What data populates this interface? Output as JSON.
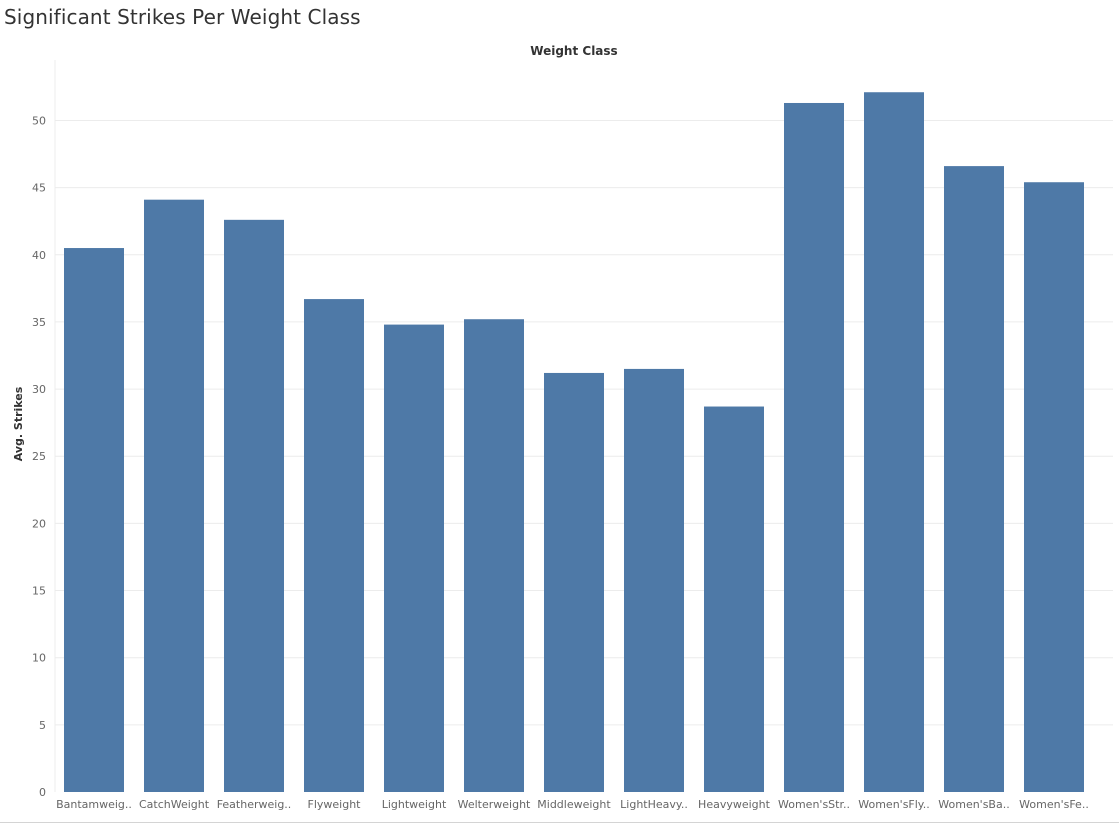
{
  "header": {
    "title": "Significant Strikes Per Weight Class"
  },
  "chart_data": {
    "type": "bar",
    "title": "Significant Strikes Per Weight Class",
    "xlabel": "Weight Class",
    "ylabel": "Avg. Strikes",
    "x_axis_position": "top",
    "categories": [
      "Bantamweig..",
      "CatchWeight",
      "Featherweig..",
      "Flyweight",
      "Lightweight",
      "Welterweight",
      "Middleweight",
      "LightHeavy..",
      "Heavyweight",
      "Women'sStr..",
      "Women'sFly..",
      "Women'sBa..",
      "Women'sFe.."
    ],
    "values": [
      40.5,
      44.1,
      42.6,
      36.7,
      34.8,
      35.2,
      31.2,
      31.5,
      28.7,
      51.3,
      52.1,
      46.6,
      45.4
    ],
    "yticks": [
      "0",
      "5",
      "10",
      "15",
      "20",
      "25",
      "30",
      "35",
      "40",
      "45",
      "50"
    ],
    "ylim": [
      0,
      54.5
    ],
    "grid": true,
    "colors": {
      "bar": "#4e79a7",
      "grid": "#ececec",
      "axis_text": "#666666",
      "label_text": "#333333"
    }
  }
}
